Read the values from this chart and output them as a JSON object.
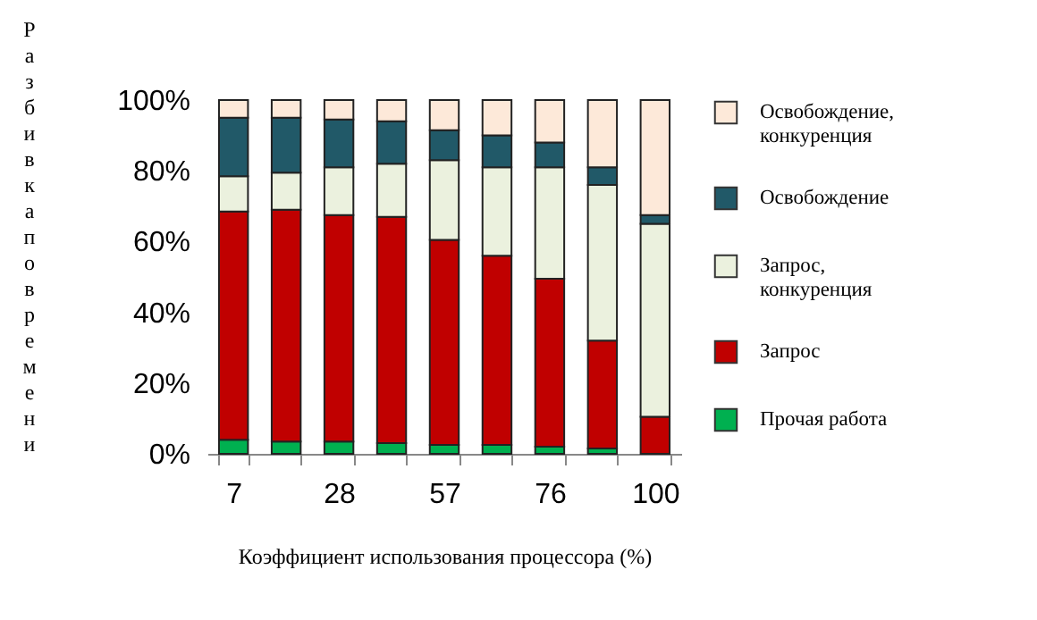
{
  "chart_data": {
    "type": "bar",
    "stacked": true,
    "xlabel": "Коэффициент использования процессора (%)",
    "ylabel": "Разбивка по времени",
    "categories": [
      "7",
      null,
      "28",
      null,
      "57",
      null,
      "76",
      null,
      "100"
    ],
    "ylim": [
      0,
      100
    ],
    "yticks": [
      {
        "value": 0,
        "label": "0%"
      },
      {
        "value": 20,
        "label": "20%"
      },
      {
        "value": 40,
        "label": "40%"
      },
      {
        "value": 60,
        "label": "60%"
      },
      {
        "value": 80,
        "label": "80%"
      },
      {
        "value": 100,
        "label": "100%"
      }
    ],
    "grid": false,
    "legend": "right",
    "series": [
      {
        "name": "Прочая работа",
        "color": "#00b050",
        "values": [
          4,
          3.5,
          3.5,
          3,
          2.5,
          2.5,
          2,
          1.5,
          0
        ]
      },
      {
        "name": "Запрос",
        "color": "#c00000",
        "values": [
          64.5,
          65.5,
          64,
          64,
          58,
          53.5,
          47.5,
          30.5,
          10.5
        ]
      },
      {
        "name": "Запрос, конкуренция",
        "color": "#ebf1de",
        "values": [
          10,
          10.5,
          13.5,
          15,
          22.5,
          25,
          31.5,
          44,
          54.5
        ]
      },
      {
        "name": "Освобождение",
        "color": "#215968",
        "values": [
          16.5,
          15.5,
          13.5,
          12,
          8.5,
          9,
          7,
          5,
          2.5
        ]
      },
      {
        "name": "Освобождение, конкуренция",
        "color": "#fde9d9",
        "values": [
          5,
          5,
          5.5,
          6,
          8.5,
          10,
          12,
          19,
          32.5
        ]
      }
    ]
  }
}
